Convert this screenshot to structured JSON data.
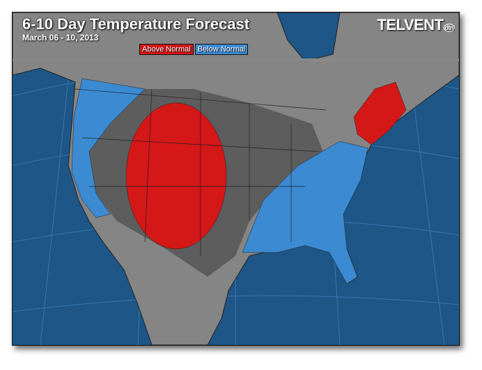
{
  "header": {
    "title": "6-10 Day Temperature Forecast",
    "date_range": "March 06 - 10, 2013",
    "logo": "TELVENT dtn"
  },
  "legend": [
    {
      "label": "Above Normal",
      "color": "#d41717"
    },
    {
      "label": "Below Normal",
      "color": "#3b8ad2"
    }
  ],
  "colors": {
    "ocean": "#1d5687",
    "land": "#858585",
    "near_normal": "#5d5d5d",
    "above": "#d41717",
    "below": "#3b8ad2"
  }
}
